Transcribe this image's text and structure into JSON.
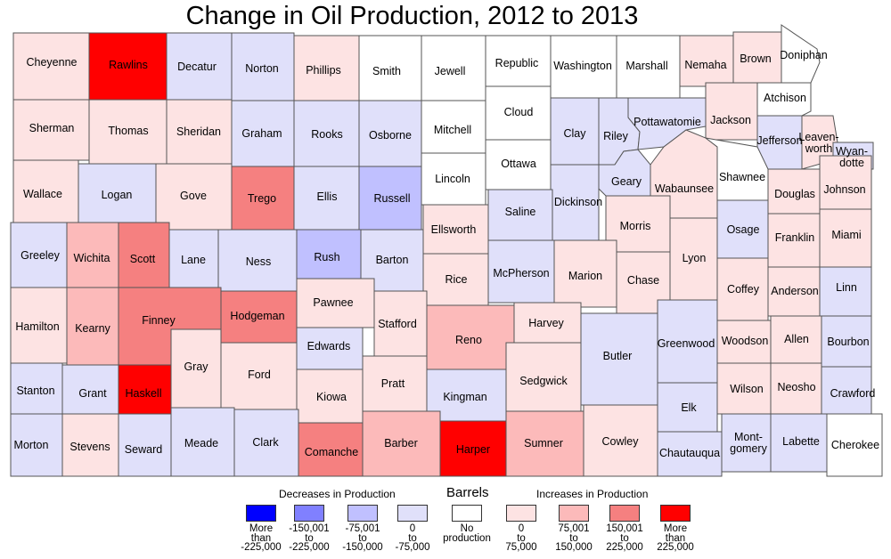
{
  "title": "Change in Oil Production, 2012 to 2013",
  "colors": {
    "dec4": "#0000ff",
    "dec3": "#8080ff",
    "dec2": "#c0c0ff",
    "dec1": "#e0e0fa",
    "none": "#ffffff",
    "inc1": "#fde3e3",
    "inc2": "#fcbaba",
    "inc3": "#f58080",
    "inc4": "#ff0000"
  },
  "legend": {
    "decreases": "Decreases in Production",
    "barrels": "Barrels",
    "increases": "Increases in Production",
    "items": [
      {
        "cls": "dec4",
        "lines": [
          "More",
          "than",
          "-225,000"
        ]
      },
      {
        "cls": "dec3",
        "lines": [
          "-150,001",
          "to",
          "-225,000"
        ]
      },
      {
        "cls": "dec2",
        "lines": [
          "-75,001",
          "to",
          "-150,000"
        ]
      },
      {
        "cls": "dec1",
        "lines": [
          "0",
          "to",
          "-75,000"
        ]
      },
      {
        "cls": "none",
        "lines": [
          "No",
          "production"
        ]
      },
      {
        "cls": "inc1",
        "lines": [
          "0",
          "to",
          "75,000"
        ]
      },
      {
        "cls": "inc2",
        "lines": [
          "75,001",
          "to",
          "150,000"
        ]
      },
      {
        "cls": "inc3",
        "lines": [
          "150,001",
          "to",
          "225,000"
        ]
      },
      {
        "cls": "inc4",
        "lines": [
          "More",
          "than",
          "225,000"
        ]
      }
    ]
  },
  "counties": [
    {
      "name": "Cheyenne",
      "cls": "inc1"
    },
    {
      "name": "Rawlins",
      "cls": "inc4"
    },
    {
      "name": "Decatur",
      "cls": "dec1"
    },
    {
      "name": "Norton",
      "cls": "dec1"
    },
    {
      "name": "Phillips",
      "cls": "inc1"
    },
    {
      "name": "Smith",
      "cls": "none"
    },
    {
      "name": "Jewell",
      "cls": "none"
    },
    {
      "name": "Republic",
      "cls": "none"
    },
    {
      "name": "Washington",
      "cls": "none"
    },
    {
      "name": "Marshall",
      "cls": "none"
    },
    {
      "name": "Nemaha",
      "cls": "inc1"
    },
    {
      "name": "Brown",
      "cls": "inc1"
    },
    {
      "name": "Doniphan",
      "cls": "none"
    },
    {
      "name": "Sherman",
      "cls": "inc1"
    },
    {
      "name": "Thomas",
      "cls": "inc1"
    },
    {
      "name": "Sheridan",
      "cls": "inc1"
    },
    {
      "name": "Graham",
      "cls": "dec1"
    },
    {
      "name": "Rooks",
      "cls": "dec1"
    },
    {
      "name": "Osborne",
      "cls": "dec1"
    },
    {
      "name": "Mitchell",
      "cls": "none"
    },
    {
      "name": "Cloud",
      "cls": "none"
    },
    {
      "name": "Clay",
      "cls": "dec1"
    },
    {
      "name": "Riley",
      "cls": "dec1"
    },
    {
      "name": "Pottawatomie",
      "cls": "dec1"
    },
    {
      "name": "Jackson",
      "cls": "inc1"
    },
    {
      "name": "Atchison",
      "cls": "none"
    },
    {
      "name": "Jefferson",
      "cls": "dec1"
    },
    {
      "name": "Leaven-worth",
      "cls": "inc1"
    },
    {
      "name": "Wyan-dotte",
      "cls": "dec1"
    },
    {
      "name": "Wallace",
      "cls": "inc1"
    },
    {
      "name": "Logan",
      "cls": "dec1"
    },
    {
      "name": "Gove",
      "cls": "inc1"
    },
    {
      "name": "Trego",
      "cls": "inc3"
    },
    {
      "name": "Ellis",
      "cls": "dec1"
    },
    {
      "name": "Russell",
      "cls": "dec2"
    },
    {
      "name": "Lincoln",
      "cls": "none"
    },
    {
      "name": "Ottawa",
      "cls": "none"
    },
    {
      "name": "Dickinson",
      "cls": "dec1"
    },
    {
      "name": "Geary",
      "cls": "dec1"
    },
    {
      "name": "Wabaunsee",
      "cls": "inc1"
    },
    {
      "name": "Shawnee",
      "cls": "none"
    },
    {
      "name": "Douglas",
      "cls": "inc1"
    },
    {
      "name": "Johnson",
      "cls": "inc1"
    },
    {
      "name": "Greeley",
      "cls": "dec1"
    },
    {
      "name": "Wichita",
      "cls": "inc2"
    },
    {
      "name": "Scott",
      "cls": "inc3"
    },
    {
      "name": "Lane",
      "cls": "dec1"
    },
    {
      "name": "Ness",
      "cls": "dec1"
    },
    {
      "name": "Rush",
      "cls": "dec2"
    },
    {
      "name": "Barton",
      "cls": "dec1"
    },
    {
      "name": "Ellsworth",
      "cls": "inc1"
    },
    {
      "name": "Saline",
      "cls": "dec1"
    },
    {
      "name": "Morris",
      "cls": "inc1"
    },
    {
      "name": "Osage",
      "cls": "dec1"
    },
    {
      "name": "Franklin",
      "cls": "inc1"
    },
    {
      "name": "Miami",
      "cls": "inc1"
    },
    {
      "name": "Rice",
      "cls": "inc1"
    },
    {
      "name": "McPherson",
      "cls": "dec1"
    },
    {
      "name": "Marion",
      "cls": "inc1"
    },
    {
      "name": "Chase",
      "cls": "inc1"
    },
    {
      "name": "Lyon",
      "cls": "inc1"
    },
    {
      "name": "Coffey",
      "cls": "inc1"
    },
    {
      "name": "Anderson",
      "cls": "inc1"
    },
    {
      "name": "Linn",
      "cls": "dec1"
    },
    {
      "name": "Hamilton",
      "cls": "inc1"
    },
    {
      "name": "Kearny",
      "cls": "inc2"
    },
    {
      "name": "Finney",
      "cls": "inc3"
    },
    {
      "name": "Hodgeman",
      "cls": "inc3"
    },
    {
      "name": "Pawnee",
      "cls": "inc1"
    },
    {
      "name": "Stafford",
      "cls": "inc1"
    },
    {
      "name": "Edwards",
      "cls": "dec1"
    },
    {
      "name": "Reno",
      "cls": "inc2"
    },
    {
      "name": "Harvey",
      "cls": "inc1"
    },
    {
      "name": "Butler",
      "cls": "dec1"
    },
    {
      "name": "Greenwood",
      "cls": "dec1"
    },
    {
      "name": "Woodson",
      "cls": "inc1"
    },
    {
      "name": "Allen",
      "cls": "inc1"
    },
    {
      "name": "Bourbon",
      "cls": "dec1"
    },
    {
      "name": "Stanton",
      "cls": "dec1"
    },
    {
      "name": "Grant",
      "cls": "dec1"
    },
    {
      "name": "Haskell",
      "cls": "inc4"
    },
    {
      "name": "Gray",
      "cls": "inc1"
    },
    {
      "name": "Ford",
      "cls": "inc1"
    },
    {
      "name": "Kiowa",
      "cls": "inc1"
    },
    {
      "name": "Pratt",
      "cls": "inc1"
    },
    {
      "name": "Kingman",
      "cls": "dec1"
    },
    {
      "name": "Sedgwick",
      "cls": "inc1"
    },
    {
      "name": "Wilson",
      "cls": "inc1"
    },
    {
      "name": "Neosho",
      "cls": "inc1"
    },
    {
      "name": "Crawford",
      "cls": "dec1"
    },
    {
      "name": "Morton",
      "cls": "dec1"
    },
    {
      "name": "Stevens",
      "cls": "inc1"
    },
    {
      "name": "Seward",
      "cls": "dec1"
    },
    {
      "name": "Meade",
      "cls": "dec1"
    },
    {
      "name": "Clark",
      "cls": "dec1"
    },
    {
      "name": "Comanche",
      "cls": "inc3"
    },
    {
      "name": "Barber",
      "cls": "inc2"
    },
    {
      "name": "Harper",
      "cls": "inc4"
    },
    {
      "name": "Sumner",
      "cls": "inc2"
    },
    {
      "name": "Cowley",
      "cls": "inc1"
    },
    {
      "name": "Elk",
      "cls": "dec1"
    },
    {
      "name": "Chautauqua",
      "cls": "dec1"
    },
    {
      "name": "Mont-gomery",
      "cls": "dec1"
    },
    {
      "name": "Labette",
      "cls": "dec1"
    },
    {
      "name": "Cherokee",
      "cls": "none"
    }
  ]
}
